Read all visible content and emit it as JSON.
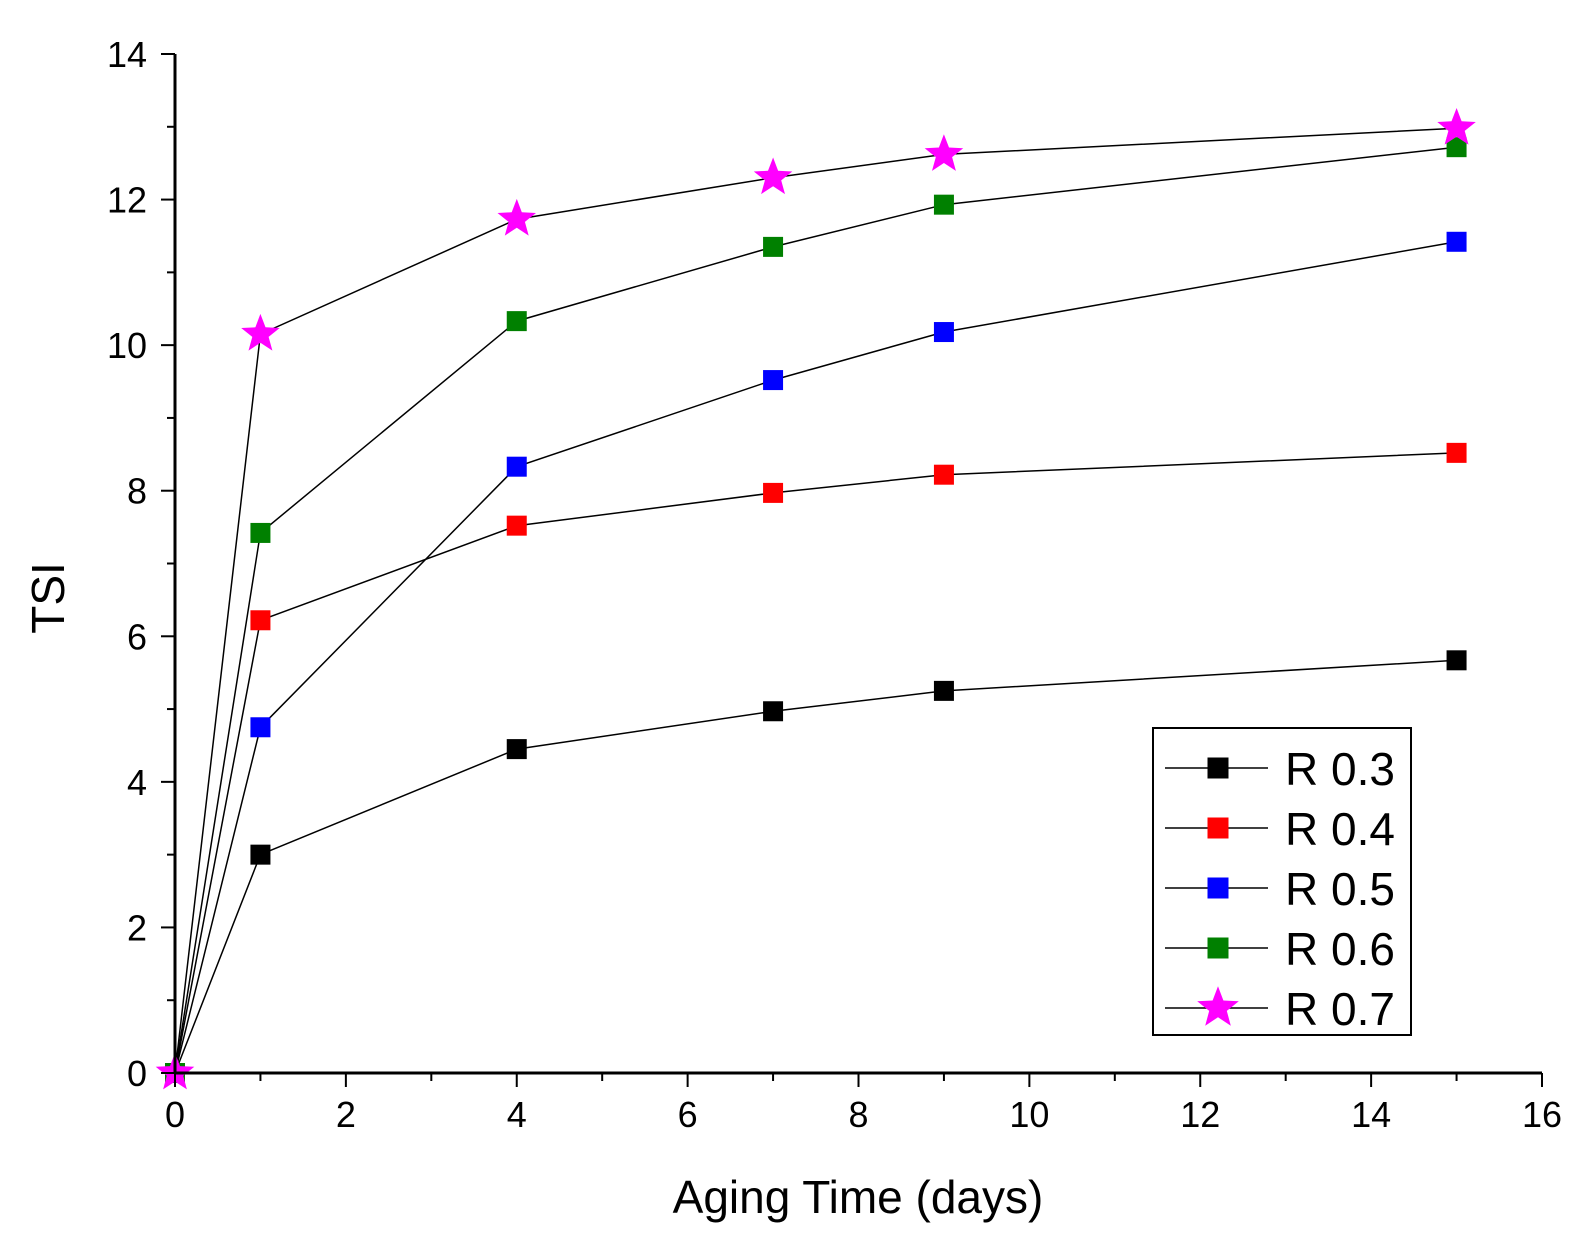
{
  "chart_data": {
    "type": "line",
    "title": "",
    "xlabel": "Aging Time (days)",
    "ylabel": "TSI",
    "xlim": [
      0,
      16
    ],
    "ylim": [
      0,
      14
    ],
    "x_ticks": [
      0,
      2,
      4,
      6,
      8,
      10,
      12,
      14,
      16
    ],
    "y_ticks": [
      0,
      2,
      4,
      6,
      8,
      10,
      12,
      14
    ],
    "x": [
      0,
      1,
      4,
      7,
      9,
      15
    ],
    "grid": false,
    "legend_position": "bottom-right",
    "series": [
      {
        "name": "R 0.3",
        "marker": "square",
        "color": "#000000",
        "values": [
          0,
          3.0,
          4.45,
          4.97,
          5.25,
          5.67
        ]
      },
      {
        "name": "R 0.4",
        "marker": "square",
        "color": "#ff0000",
        "values": [
          0,
          6.22,
          7.52,
          7.97,
          8.22,
          8.52
        ]
      },
      {
        "name": "R 0.5",
        "marker": "square",
        "color": "#0000ff",
        "values": [
          0,
          4.75,
          8.33,
          9.52,
          10.18,
          11.42
        ]
      },
      {
        "name": "R 0.6",
        "marker": "square",
        "color": "#008000",
        "values": [
          0,
          7.42,
          10.33,
          11.35,
          11.93,
          12.72
        ]
      },
      {
        "name": "R 0.7",
        "marker": "star",
        "color": "#ff00ff",
        "values": [
          0,
          10.15,
          11.73,
          12.3,
          12.62,
          12.98
        ]
      }
    ]
  }
}
